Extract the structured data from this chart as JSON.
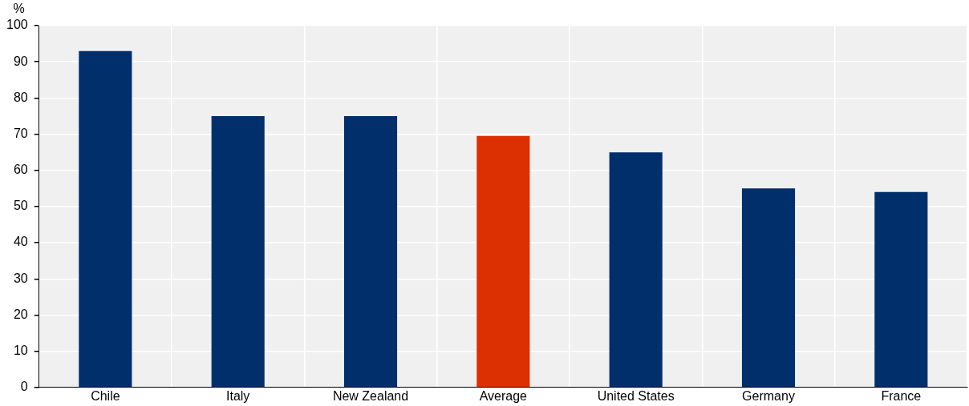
{
  "chart_data": {
    "type": "bar",
    "ylabel": "%",
    "categories": [
      "Chile",
      "Italy",
      "New Zealand",
      "Average",
      "United States",
      "Germany",
      "France"
    ],
    "values": [
      93,
      75,
      75,
      69.5,
      65,
      55,
      54
    ],
    "colors": [
      "#002f6c",
      "#002f6c",
      "#002f6c",
      "#dc2f02",
      "#002f6c",
      "#002f6c",
      "#002f6c"
    ],
    "ylim": [
      0,
      100
    ],
    "yticks": [
      0,
      10,
      20,
      30,
      40,
      50,
      60,
      70,
      80,
      90,
      100
    ],
    "grid": true,
    "legend": false
  }
}
